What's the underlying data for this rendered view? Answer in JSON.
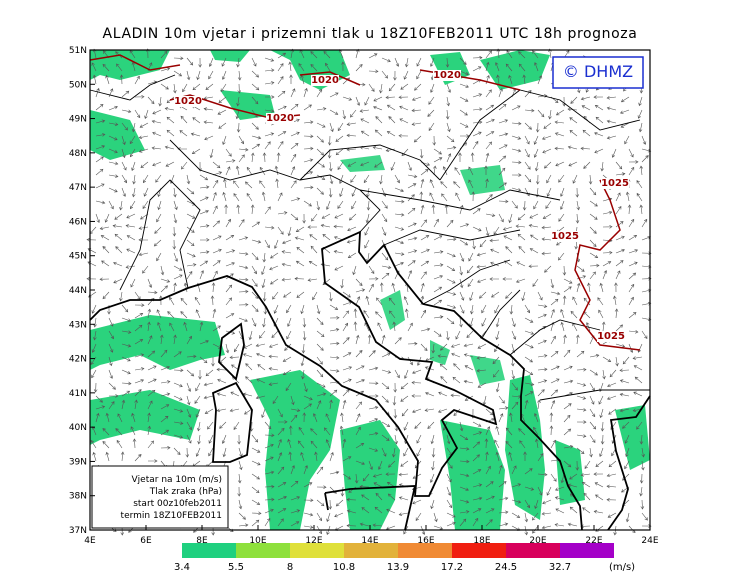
{
  "title": "ALADIN 10m vjetar i prizemni tlak u 18Z10FEB2011 UTC 18h prognoza",
  "copyright": "© DHMZ",
  "lat_labels": [
    "51N",
    "50N",
    "49N",
    "48N",
    "47N",
    "46N",
    "45N",
    "44N",
    "43N",
    "42N",
    "41N",
    "40N",
    "39N",
    "38N",
    "37N"
  ],
  "lon_labels": [
    "4E",
    "6E",
    "8E",
    "10E",
    "12E",
    "14E",
    "16E",
    "18E",
    "20E",
    "22E",
    "24E"
  ],
  "isobar_labels": [
    "1020",
    "1020",
    "1020",
    "1020",
    "1025",
    "1025",
    "1025"
  ],
  "info_box": [
    "Vjetar na 10m (m/s)",
    "Tlak zraka (hPa)",
    "start 00z10feb2011",
    "termin 18Z10FEB2011"
  ],
  "colorbar": {
    "thresholds": [
      3.4,
      5.5,
      8,
      10.8,
      13.9,
      17.2,
      24.5,
      32.7
    ],
    "unit": "(m/s)",
    "colors": [
      "#1fd07f",
      "#8ee03c",
      "#dfe03a",
      "#e2b23a",
      "#f08a34",
      "#f01e10",
      "#d8005c",
      "#a400c8"
    ]
  }
}
